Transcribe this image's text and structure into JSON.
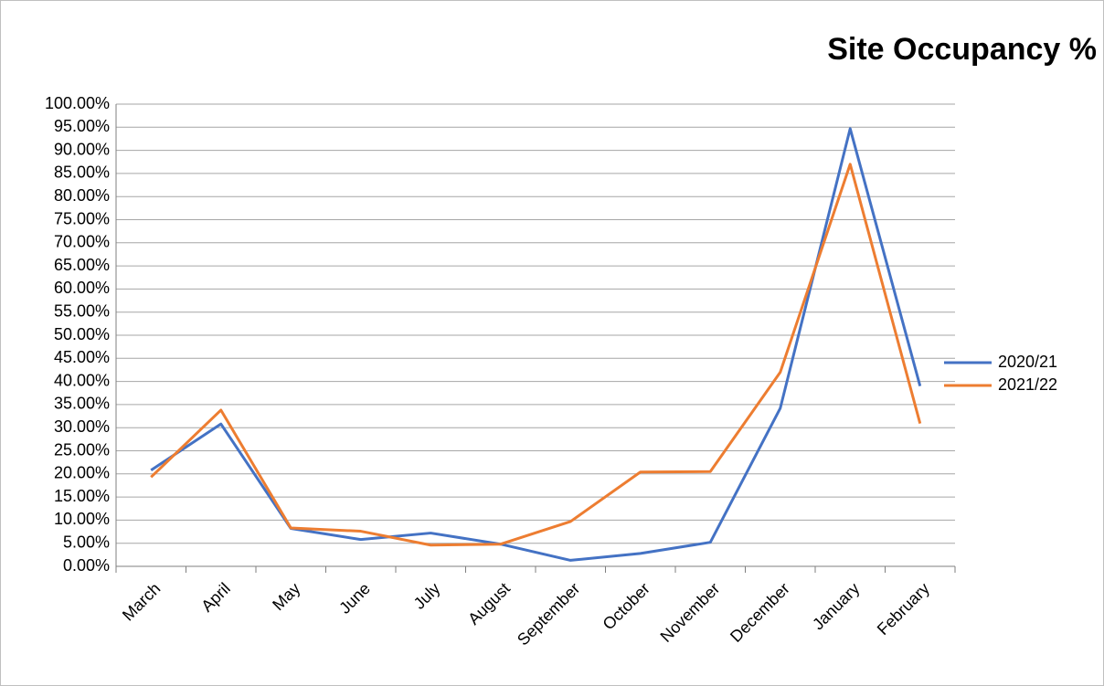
{
  "chart_data": {
    "type": "line",
    "title": "Site Occupancy %",
    "categories": [
      "March",
      "April",
      "May",
      "June",
      "July",
      "August",
      "September",
      "October",
      "November",
      "December",
      "January",
      "February"
    ],
    "series": [
      {
        "name": "2020/21",
        "color": "#4472c4",
        "values": [
          20.8,
          30.8,
          8.2,
          5.8,
          7.2,
          4.8,
          1.3,
          2.8,
          5.2,
          34.2,
          94.7,
          39.0
        ]
      },
      {
        "name": "2021/22",
        "color": "#ed7d31",
        "values": [
          19.3,
          33.8,
          8.3,
          7.6,
          4.6,
          4.8,
          9.7,
          20.4,
          20.5,
          42.0,
          87.0,
          30.9
        ]
      }
    ],
    "ylim": [
      0,
      100
    ],
    "yticks": [
      {
        "value": 0,
        "label": "0.00%"
      },
      {
        "value": 5,
        "label": "5.00%"
      },
      {
        "value": 10,
        "label": "10.00%"
      },
      {
        "value": 15,
        "label": "15.00%"
      },
      {
        "value": 20,
        "label": "20.00%"
      },
      {
        "value": 25,
        "label": "25.00%"
      },
      {
        "value": 30,
        "label": "30.00%"
      },
      {
        "value": 35,
        "label": "35.00%"
      },
      {
        "value": 40,
        "label": "40.00%"
      },
      {
        "value": 45,
        "label": "45.00%"
      },
      {
        "value": 50,
        "label": "50.00%"
      },
      {
        "value": 55,
        "label": "55.00%"
      },
      {
        "value": 60,
        "label": "60.00%"
      },
      {
        "value": 65,
        "label": "65.00%"
      },
      {
        "value": 70,
        "label": "70.00%"
      },
      {
        "value": 75,
        "label": "75.00%"
      },
      {
        "value": 80,
        "label": "80.00%"
      },
      {
        "value": 85,
        "label": "85.00%"
      },
      {
        "value": 90,
        "label": "90.00%"
      },
      {
        "value": 95,
        "label": "95.00%"
      },
      {
        "value": 100,
        "label": "100.00%"
      }
    ],
    "grid": true,
    "legend": "right"
  }
}
